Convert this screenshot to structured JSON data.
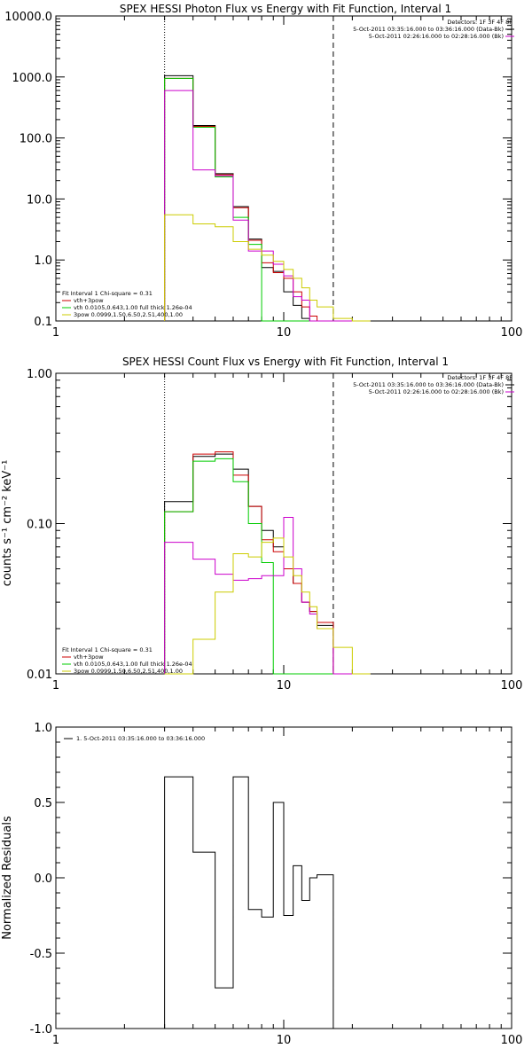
{
  "panels": [
    {
      "title": "SPEX HESSI Photon Flux vs Energy with Fit Function, Interval 1"
    },
    {
      "title": "SPEX HESSI Count Flux vs Energy with Fit Function, Interval 1",
      "ylabel": "counts s⁻¹ cm⁻² keV⁻¹"
    },
    {
      "title": "",
      "ylabel": "Normalized Residuals"
    }
  ],
  "legend_top": {
    "detectors": "Detectors: 1F 3F 4F 8F",
    "lines": [
      {
        "text": "5-Oct-2011 03:35:16.000 to 03:36:16.000 (Data-Bk)",
        "color": "#000000"
      },
      {
        "text": "5-Oct-2011 02:26:16.000 to 02:28:16.000 (Bk)",
        "color": "#cc00cc"
      }
    ]
  },
  "legend_fit": {
    "header": "Fit Interval 1    Chi-square = 0.31",
    "lines": [
      {
        "text": "vth+3pow",
        "color": "#cc0000"
      },
      {
        "text": "vth 0.0105,0.643,1.00  full thick 1.26e-04",
        "color": "#00cc00"
      },
      {
        "text": "3pow 0.0999,1.50,6.50,2.51,400,1.00",
        "color": "#cccc00"
      }
    ]
  },
  "legend_resid": {
    "text": "1.  5-Oct-2011 03:35:16.000 to 03:36:16.000",
    "color": "#000000"
  },
  "chart_data": [
    {
      "type": "line",
      "title": "SPEX HESSI Photon Flux vs Energy with Fit Function, Interval 1",
      "x_scale": "log",
      "y_scale": "log",
      "xlim": [
        1,
        100
      ],
      "ylim": [
        0.1,
        10000
      ],
      "x_ticks": [
        "1",
        "10",
        "100"
      ],
      "y_ticks": [
        "0.1",
        "1.0",
        "10.0",
        "100.0",
        "1000.0",
        "10000.0"
      ],
      "y_tick_values": [
        0.1,
        1,
        10,
        100,
        1000,
        10000
      ],
      "vlines": [
        {
          "x": 3.0,
          "style": "dotted"
        },
        {
          "x": 16.5,
          "style": "dashed"
        }
      ],
      "edges": [
        3,
        4,
        5,
        6,
        7,
        8,
        9,
        10,
        11,
        12,
        13,
        14,
        16.5,
        20,
        24
      ],
      "series": [
        {
          "color": "#000000",
          "values": [
            1050,
            160,
            26,
            7.5,
            2.2,
            0.75,
            0.65,
            0.3,
            0.18,
            0.11,
            0.1,
            0.1,
            0.1,
            0.1
          ]
        },
        {
          "color": "#cc0000",
          "values": [
            950,
            155,
            25,
            7.2,
            2.1,
            0.9,
            0.62,
            0.5,
            0.3,
            0.17,
            0.12,
            0.1,
            0.1,
            0.1
          ]
        },
        {
          "color": "#00cc00",
          "values": [
            950,
            150,
            23,
            5,
            1.8,
            0.1,
            0.1,
            0.1,
            0.1,
            0.1,
            0.1,
            0.1,
            0.1,
            0.1
          ]
        },
        {
          "color": "#cc00cc",
          "values": [
            600,
            30,
            24,
            4.5,
            1.4,
            1.4,
            0.85,
            0.55,
            0.25,
            0.22,
            0.1,
            0.1,
            0.1,
            0.1
          ]
        },
        {
          "color": "#cccc00",
          "values": [
            5.5,
            3.9,
            3.5,
            2.0,
            1.5,
            1.2,
            0.95,
            0.7,
            0.5,
            0.35,
            0.22,
            0.17,
            0.11,
            0.1
          ]
        }
      ]
    },
    {
      "type": "line",
      "title": "SPEX HESSI Count Flux vs Energy with Fit Function, Interval 1",
      "ylabel": "counts s⁻¹ cm⁻² keV⁻¹",
      "x_scale": "log",
      "y_scale": "log",
      "xlim": [
        1,
        100
      ],
      "ylim": [
        0.01,
        1
      ],
      "x_ticks": [
        "1",
        "10",
        "100"
      ],
      "y_ticks": [
        "0.01",
        "0.10",
        "1.00"
      ],
      "y_tick_values": [
        0.01,
        0.1,
        1
      ],
      "vlines": [
        {
          "x": 3.0,
          "style": "dotted"
        },
        {
          "x": 16.5,
          "style": "dashed"
        }
      ],
      "edges": [
        3,
        4,
        5,
        6,
        7,
        8,
        9,
        10,
        11,
        12,
        13,
        14,
        16.5,
        20,
        24
      ],
      "series": [
        {
          "color": "#000000",
          "values": [
            0.14,
            0.28,
            0.29,
            0.23,
            0.13,
            0.09,
            0.07,
            0.05,
            0.04,
            0.03,
            0.026,
            0.021,
            0.01,
            0.01
          ]
        },
        {
          "color": "#cc0000",
          "values": [
            0.12,
            0.29,
            0.3,
            0.21,
            0.13,
            0.078,
            0.065,
            0.05,
            0.04,
            0.03,
            0.026,
            0.022,
            0.01,
            0.01
          ]
        },
        {
          "color": "#00cc00",
          "values": [
            0.12,
            0.26,
            0.27,
            0.19,
            0.1,
            0.055,
            0.01,
            0.01,
            0.01,
            0.01,
            0.01,
            0.01,
            0.01,
            0.01
          ]
        },
        {
          "color": "#cc00cc",
          "values": [
            0.075,
            0.058,
            0.046,
            0.042,
            0.043,
            0.045,
            0.045,
            0.11,
            0.05,
            0.03,
            0.025,
            0.02,
            0.01,
            0.01
          ]
        },
        {
          "color": "#cccc00",
          "values": [
            0.01,
            0.017,
            0.035,
            0.063,
            0.06,
            0.075,
            0.08,
            0.06,
            0.045,
            0.035,
            0.028,
            0.02,
            0.015,
            0.01
          ]
        }
      ]
    },
    {
      "type": "line",
      "ylabel": "Normalized Residuals",
      "x_scale": "log",
      "y_scale": "linear",
      "xlim": [
        1,
        100
      ],
      "ylim": [
        -1.0,
        1.0
      ],
      "x_ticks": [
        "1",
        "10",
        "100"
      ],
      "y_ticks": [
        "-1.0",
        "-0.5",
        "0.0",
        "0.5",
        "1.0"
      ],
      "y_tick_values": [
        -1.0,
        -0.5,
        0.0,
        0.5,
        1.0
      ],
      "edges": [
        3,
        4,
        5,
        6,
        7,
        8,
        9,
        10,
        11,
        12,
        13,
        14,
        16.5
      ],
      "series": [
        {
          "color": "#000000",
          "values": [
            0.67,
            0.17,
            -0.73,
            0.67,
            -0.21,
            -0.26,
            0.5,
            -0.25,
            0.08,
            -0.15,
            0.0,
            0.02
          ]
        }
      ]
    }
  ]
}
